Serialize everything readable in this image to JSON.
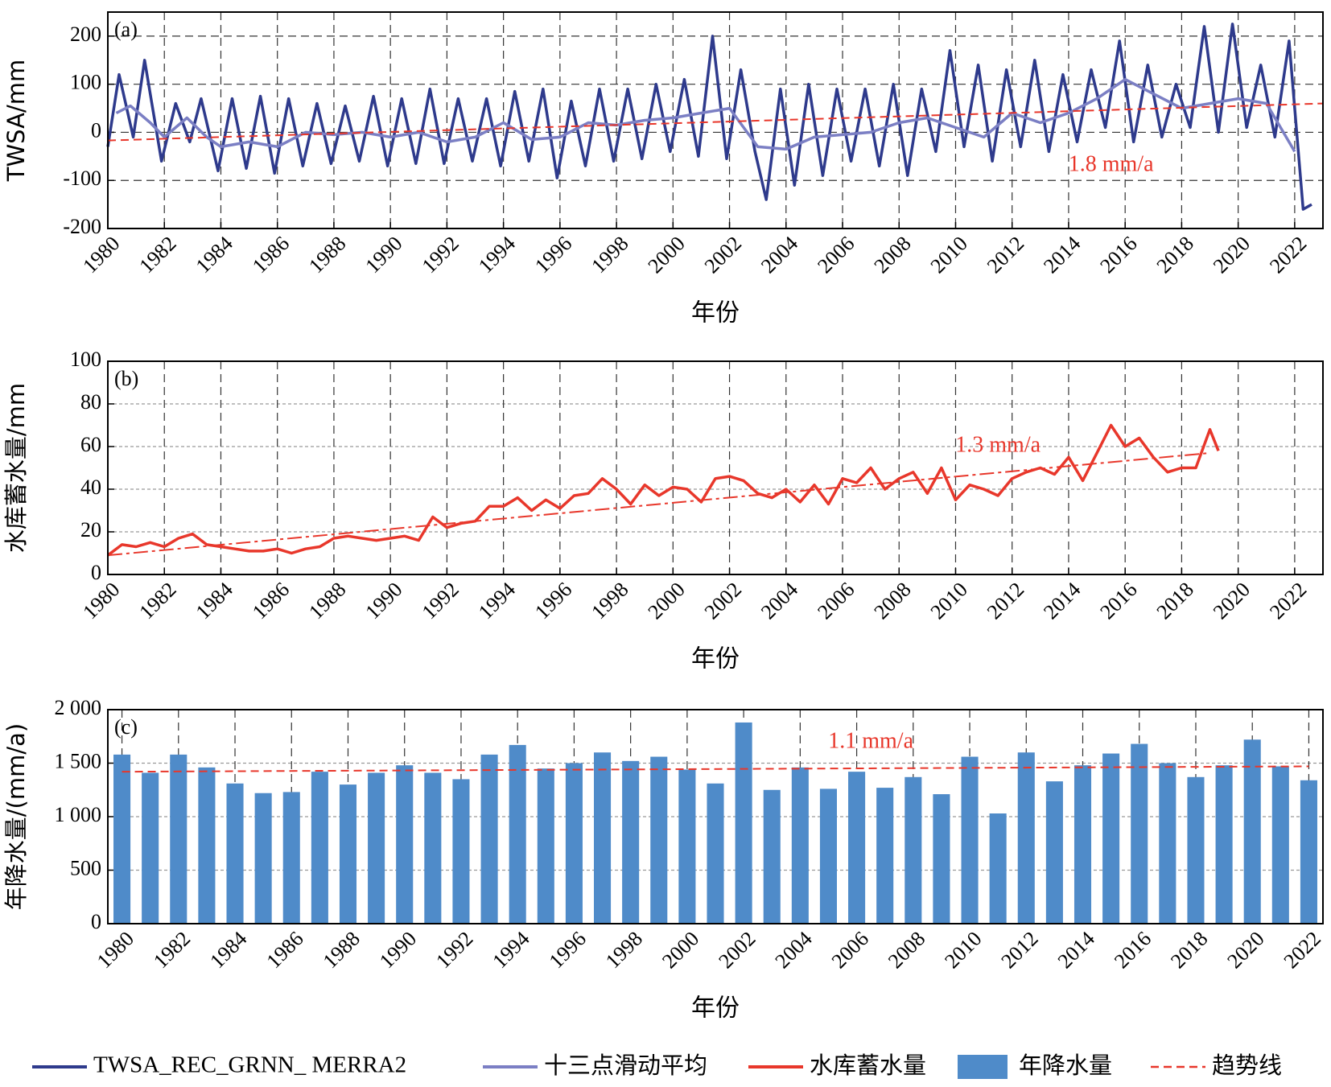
{
  "chart_data": [
    {
      "type": "line",
      "label": "(a)",
      "xlabel": "年份",
      "ylabel": "TWSA/mm",
      "xlim": [
        1980,
        2023
      ],
      "xticks": [
        1980,
        1982,
        1984,
        1986,
        1988,
        1990,
        1992,
        1994,
        1996,
        1998,
        2000,
        2002,
        2004,
        2006,
        2008,
        2010,
        2012,
        2014,
        2016,
        2018,
        2020,
        2022
      ],
      "ylim": [
        -200,
        250
      ],
      "yticks": [
        -200,
        -100,
        0,
        100,
        200
      ],
      "grid": true,
      "series": [
        {
          "name": "TWSA_REC_GRNN_ MERRA2",
          "color": "#2e3a8c",
          "x": [
            1980.0,
            1980.4,
            1980.9,
            1981.3,
            1981.9,
            1982.4,
            1982.9,
            1983.3,
            1983.9,
            1984.4,
            1984.9,
            1985.4,
            1985.9,
            1986.4,
            1986.9,
            1987.4,
            1987.9,
            1988.4,
            1988.9,
            1989.4,
            1989.9,
            1990.4,
            1990.9,
            1991.4,
            1991.9,
            1992.4,
            1992.9,
            1993.4,
            1993.9,
            1994.4,
            1994.9,
            1995.4,
            1995.9,
            1996.4,
            1996.9,
            1997.4,
            1997.9,
            1998.4,
            1998.9,
            1999.4,
            1999.9,
            2000.4,
            2000.9,
            2001.4,
            2001.9,
            2002.4,
            2002.9,
            2003.3,
            2003.8,
            2004.3,
            2004.8,
            2005.3,
            2005.8,
            2006.3,
            2006.8,
            2007.3,
            2007.8,
            2008.3,
            2008.8,
            2009.3,
            2009.8,
            2010.3,
            2010.8,
            2011.3,
            2011.8,
            2012.3,
            2012.8,
            2013.3,
            2013.8,
            2014.3,
            2014.8,
            2015.3,
            2015.8,
            2016.3,
            2016.8,
            2017.3,
            2017.8,
            2018.3,
            2018.8,
            2019.3,
            2019.8,
            2020.3,
            2020.8,
            2021.3,
            2021.8,
            2022.3,
            2022.6
          ],
          "values": [
            -30,
            120,
            -10,
            150,
            -60,
            60,
            -20,
            70,
            -80,
            70,
            -75,
            75,
            -85,
            70,
            -70,
            60,
            -65,
            55,
            -60,
            75,
            -70,
            70,
            -65,
            90,
            -65,
            70,
            -60,
            70,
            -70,
            85,
            -60,
            90,
            -95,
            65,
            -70,
            90,
            -60,
            90,
            -55,
            100,
            -40,
            110,
            -50,
            200,
            -55,
            130,
            -40,
            -140,
            90,
            -110,
            100,
            -90,
            90,
            -60,
            90,
            -70,
            100,
            -90,
            90,
            -40,
            170,
            -30,
            140,
            -60,
            130,
            -30,
            150,
            -40,
            120,
            -20,
            130,
            10,
            190,
            -20,
            140,
            -10,
            100,
            10,
            220,
            0,
            225,
            10,
            140,
            -10,
            190,
            -160,
            -150
          ]
        },
        {
          "name": "十三点滑动平均",
          "color": "#7b7fc4",
          "x": [
            1980.3,
            1980.8,
            1981.5,
            1982,
            1982.8,
            1983.5,
            1984,
            1985,
            1986,
            1987,
            1988,
            1989,
            1990,
            1991,
            1992,
            1993,
            1994,
            1995,
            1996,
            1997,
            1998,
            1999,
            2000,
            2001,
            2002,
            2003,
            2004,
            2005,
            2006,
            2007,
            2008,
            2009,
            2010,
            2011,
            2012,
            2013,
            2014,
            2015,
            2016,
            2017,
            2018,
            2019,
            2020,
            2021,
            2022
          ],
          "values": [
            40,
            55,
            20,
            -10,
            30,
            -10,
            -30,
            -20,
            -30,
            0,
            -5,
            0,
            -10,
            0,
            -20,
            -10,
            20,
            -15,
            -10,
            20,
            15,
            25,
            30,
            40,
            50,
            -30,
            -35,
            -10,
            -5,
            0,
            20,
            30,
            10,
            -10,
            40,
            20,
            40,
            70,
            110,
            80,
            50,
            60,
            70,
            60,
            -40
          ]
        }
      ],
      "trend": {
        "name": "趋势线",
        "color": "#e8372b",
        "x": [
          1980,
          2023
        ],
        "values": [
          -17,
          60
        ]
      },
      "annotation": {
        "text": "1.8 mm/a",
        "x": 2015.5,
        "y": -70
      }
    },
    {
      "type": "line",
      "label": "(b)",
      "xlabel": "年份",
      "ylabel": "水库蓄水量/mm",
      "xlim": [
        1980,
        2023
      ],
      "xticks": [
        1980,
        1982,
        1984,
        1986,
        1988,
        1990,
        1992,
        1994,
        1996,
        1998,
        2000,
        2002,
        2004,
        2006,
        2008,
        2010,
        2012,
        2014,
        2016,
        2018,
        2020,
        2022
      ],
      "ylim": [
        0,
        100
      ],
      "yticks": [
        0,
        20,
        40,
        60,
        80,
        100
      ],
      "grid": true,
      "series": [
        {
          "name": "水库蓄水量",
          "color": "#e8372b",
          "x": [
            1980,
            1980.5,
            1981,
            1981.5,
            1982,
            1982.5,
            1983,
            1983.5,
            1984,
            1984.5,
            1985,
            1985.5,
            1986,
            1986.5,
            1987,
            1987.5,
            1988,
            1988.5,
            1989,
            1989.5,
            1990,
            1990.5,
            1991,
            1991.5,
            1992,
            1992.5,
            1993,
            1993.5,
            1994,
            1994.5,
            1995,
            1995.5,
            1996,
            1996.5,
            1997,
            1997.5,
            1998,
            1998.5,
            1999,
            1999.5,
            2000,
            2000.5,
            2001,
            2001.5,
            2002,
            2002.5,
            2003,
            2003.5,
            2004,
            2004.5,
            2005,
            2005.5,
            2006,
            2006.5,
            2007,
            2007.5,
            2008,
            2008.5,
            2009,
            2009.5,
            2010,
            2010.5,
            2011,
            2011.5,
            2012,
            2012.5,
            2013,
            2013.5,
            2014,
            2014.5,
            2015,
            2015.5,
            2016,
            2016.5,
            2017,
            2017.5,
            2018,
            2018.5,
            2019,
            2019.3
          ],
          "values": [
            9,
            14,
            13,
            15,
            13,
            17,
            19,
            14,
            13,
            12,
            11,
            11,
            12,
            10,
            12,
            13,
            17,
            18,
            17,
            16,
            17,
            18,
            16,
            27,
            22,
            24,
            25,
            32,
            32,
            36,
            30,
            35,
            31,
            37,
            38,
            45,
            40,
            33,
            42,
            37,
            41,
            40,
            34,
            45,
            46,
            44,
            38,
            36,
            40,
            34,
            42,
            33,
            45,
            43,
            50,
            40,
            45,
            48,
            38,
            50,
            35,
            42,
            40,
            37,
            45,
            48,
            50,
            47,
            55,
            44,
            57,
            70,
            60,
            64,
            55,
            48,
            50,
            50,
            68,
            58
          ]
        }
      ],
      "trend": {
        "name": "趋势线",
        "color": "#e8372b",
        "x": [
          1980,
          2019
        ],
        "values": [
          9,
          57
        ]
      },
      "annotation": {
        "text": "1.3 mm/a",
        "x": 2011.5,
        "y": 60
      }
    },
    {
      "type": "bar",
      "label": "(c)",
      "xlabel": "年份",
      "ylabel": "年降水量/(mm/a)",
      "xlim": [
        1979.5,
        2022.5
      ],
      "xticks": [
        1980,
        1982,
        1984,
        1986,
        1988,
        1990,
        1992,
        1994,
        1996,
        1998,
        2000,
        2002,
        2004,
        2006,
        2008,
        2010,
        2012,
        2014,
        2016,
        2018,
        2020,
        2022
      ],
      "ylim": [
        0,
        2000
      ],
      "yticks": [
        0,
        500,
        {
          "value": 1000,
          "label": "1 000"
        },
        {
          "value": 1500,
          "label": "1 500"
        },
        {
          "value": 2000,
          "label": "2 000"
        }
      ],
      "grid": true,
      "series": [
        {
          "name": "年降水量",
          "color": "#4f8bc9",
          "x": [
            1980,
            1981,
            1982,
            1983,
            1984,
            1985,
            1986,
            1987,
            1988,
            1989,
            1990,
            1991,
            1992,
            1993,
            1994,
            1995,
            1996,
            1997,
            1998,
            1999,
            2000,
            2001,
            2002,
            2003,
            2004,
            2005,
            2006,
            2007,
            2008,
            2009,
            2010,
            2011,
            2012,
            2013,
            2014,
            2015,
            2016,
            2017,
            2018,
            2019,
            2020,
            2021,
            2022
          ],
          "values": [
            1580,
            1410,
            1580,
            1460,
            1310,
            1220,
            1230,
            1420,
            1300,
            1410,
            1480,
            1410,
            1350,
            1580,
            1670,
            1450,
            1500,
            1600,
            1520,
            1560,
            1440,
            1310,
            1880,
            1250,
            1460,
            1260,
            1420,
            1270,
            1370,
            1210,
            1560,
            1030,
            1600,
            1330,
            1480,
            1590,
            1680,
            1500,
            1370,
            1480,
            1720,
            1470,
            1340
          ]
        }
      ],
      "trend": {
        "name": "趋势线",
        "color": "#e8372b",
        "x": [
          1980,
          2022
        ],
        "values": [
          1420,
          1470
        ]
      },
      "annotation": {
        "text": "1.1 mm/a",
        "x": 2006.5,
        "y": 1690
      }
    }
  ]
}
